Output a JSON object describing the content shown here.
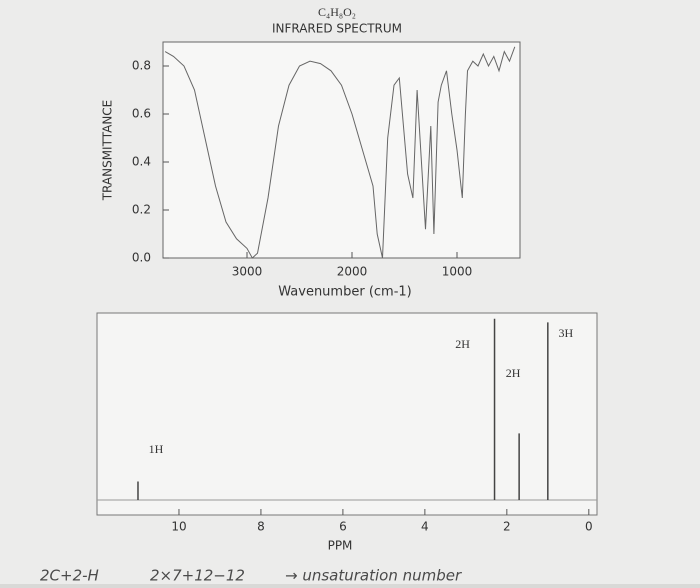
{
  "chart_data": [
    {
      "type": "line",
      "subtitle": "C₄H₈O₂",
      "title": "INFRARED SPECTRUM",
      "ylabel": "TRANSMITTANCE",
      "xlabel": "Wavenumber (cm-1)",
      "x": [
        3780,
        3700,
        3600,
        3500,
        3400,
        3300,
        3200,
        3100,
        3000,
        2950,
        2900,
        2800,
        2700,
        2600,
        2500,
        2400,
        2300,
        2200,
        2100,
        2000,
        1900,
        1800,
        1760,
        1710,
        1660,
        1600,
        1550,
        1470,
        1420,
        1380,
        1300,
        1250,
        1220,
        1180,
        1150,
        1100,
        1050,
        1000,
        950,
        920,
        900,
        850,
        800,
        750,
        700,
        650,
        600,
        550,
        500,
        450
      ],
      "values": [
        0.86,
        0.84,
        0.8,
        0.7,
        0.5,
        0.3,
        0.15,
        0.08,
        0.04,
        0.0,
        0.02,
        0.25,
        0.55,
        0.72,
        0.8,
        0.82,
        0.81,
        0.78,
        0.72,
        0.6,
        0.45,
        0.3,
        0.1,
        0.0,
        0.5,
        0.72,
        0.75,
        0.35,
        0.25,
        0.7,
        0.12,
        0.55,
        0.1,
        0.65,
        0.72,
        0.78,
        0.6,
        0.45,
        0.25,
        0.6,
        0.78,
        0.82,
        0.8,
        0.85,
        0.8,
        0.84,
        0.78,
        0.86,
        0.82,
        0.88
      ],
      "color": "#666666",
      "xlim": [
        3800,
        400
      ],
      "ylim": [
        0,
        0.9
      ],
      "xticks": [
        3000,
        2000,
        1000
      ],
      "yticks": [
        {
          "value": 0,
          "label": "0.0"
        },
        0.2,
        0.4,
        0.6,
        0.8
      ]
    },
    {
      "type": "stem",
      "xlabel": "PPM",
      "x": [
        11.0,
        2.3,
        1.7,
        1.0
      ],
      "values": [
        0.1,
        0.98,
        0.36,
        0.96
      ],
      "annotations": [
        "1H",
        "2H",
        "2H",
        "3H"
      ],
      "color": "#444444",
      "xlim": [
        12,
        -0.2
      ],
      "ylim": [
        0,
        1
      ],
      "xticks": [
        10,
        8,
        6,
        4,
        2,
        0
      ]
    }
  ],
  "handwriting": [
    "2C+2-H",
    "2×7+12−12",
    "→ unsaturation number"
  ]
}
